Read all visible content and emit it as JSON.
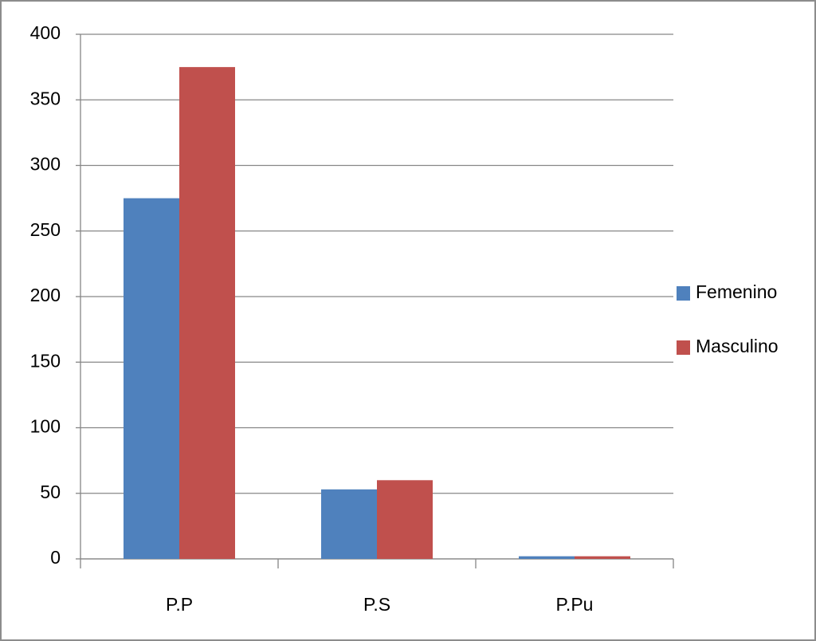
{
  "chart_data": {
    "type": "bar",
    "categories": [
      "P.P",
      "P.S",
      "P.Pu"
    ],
    "series": [
      {
        "name": "Femenino",
        "color": "#4f81bd",
        "values": [
          275,
          53,
          2
        ]
      },
      {
        "name": "Masculino",
        "color": "#c0504d",
        "values": [
          375,
          60,
          2
        ]
      }
    ],
    "ylim": [
      0,
      400
    ],
    "yticks": [
      0,
      50,
      100,
      150,
      200,
      250,
      300,
      350,
      400
    ],
    "grid": true,
    "legend": "right"
  }
}
